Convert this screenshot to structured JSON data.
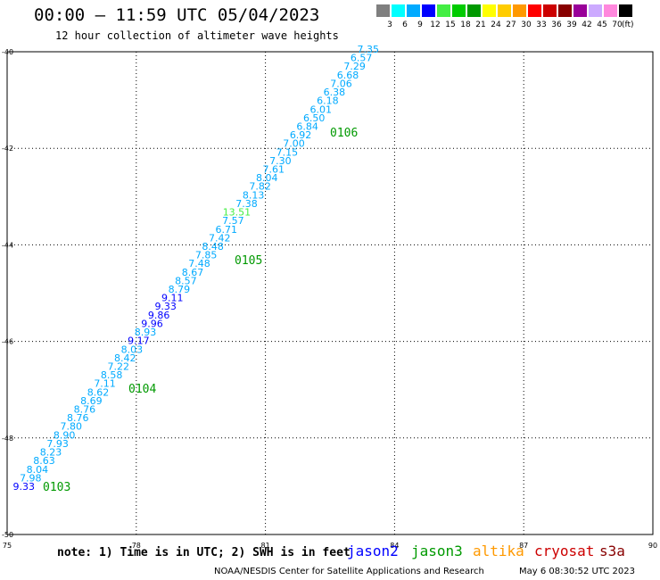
{
  "header": {
    "title": "00:00 – 11:59 UTC 05/04/2023",
    "subtitle": "12 hour collection of altimeter wave heights"
  },
  "colorbar": {
    "swatches": [
      {
        "label": "3",
        "color": "#7f7f7f"
      },
      {
        "label": "6",
        "color": "#00ffff"
      },
      {
        "label": "9",
        "color": "#00aaff"
      },
      {
        "label": "12",
        "color": "#0000ff"
      },
      {
        "label": "15",
        "color": "#44ee44"
      },
      {
        "label": "18",
        "color": "#00cc00"
      },
      {
        "label": "21",
        "color": "#009900"
      },
      {
        "label": "24",
        "color": "#ffff00"
      },
      {
        "label": "27",
        "color": "#ffcc00"
      },
      {
        "label": "30",
        "color": "#ff9900"
      },
      {
        "label": "33",
        "color": "#ff0000"
      },
      {
        "label": "36",
        "color": "#cc0000"
      },
      {
        "label": "39",
        "color": "#880000"
      },
      {
        "label": "42",
        "color": "#990099"
      },
      {
        "label": "45",
        "color": "#ccaaff"
      },
      {
        "label": "70",
        "color": "#ff88dd"
      },
      {
        "label": "",
        "color": "#000000"
      }
    ],
    "unit": "(ft)"
  },
  "chart_data": {
    "type": "scatter",
    "xlim": [
      75,
      90
    ],
    "ylim": [
      -50,
      -40
    ],
    "x_ticks": [
      "75",
      "78",
      "81",
      "84",
      "87",
      "90"
    ],
    "y_ticks": [
      "-40",
      "-42",
      "-44",
      "-46",
      "-48",
      "-50"
    ],
    "grid": true,
    "track_values": [
      {
        "v": "7.35",
        "c": "#00aaff"
      },
      {
        "v": "6.57",
        "c": "#00aaff"
      },
      {
        "v": "7.29",
        "c": "#00aaff"
      },
      {
        "v": "6.68",
        "c": "#00aaff"
      },
      {
        "v": "7.06",
        "c": "#00aaff"
      },
      {
        "v": "6.38",
        "c": "#00aaff"
      },
      {
        "v": "6.18",
        "c": "#00aaff"
      },
      {
        "v": "6.01",
        "c": "#00aaff"
      },
      {
        "v": "6.50",
        "c": "#00aaff"
      },
      {
        "v": "6.84",
        "c": "#00aaff"
      },
      {
        "v": "6.92",
        "c": "#00aaff"
      },
      {
        "v": "7.00",
        "c": "#00aaff"
      },
      {
        "v": "7.15",
        "c": "#00aaff"
      },
      {
        "v": "7.30",
        "c": "#00aaff"
      },
      {
        "v": "7.61",
        "c": "#00aaff"
      },
      {
        "v": "8.04",
        "c": "#00aaff"
      },
      {
        "v": "7.82",
        "c": "#00aaff"
      },
      {
        "v": "8.13",
        "c": "#00aaff"
      },
      {
        "v": "7.38",
        "c": "#00aaff"
      },
      {
        "v": "13.51",
        "c": "#44ee44"
      },
      {
        "v": "7.57",
        "c": "#00aaff"
      },
      {
        "v": "6.71",
        "c": "#00aaff"
      },
      {
        "v": "7.42",
        "c": "#00aaff"
      },
      {
        "v": "8.48",
        "c": "#00aaff"
      },
      {
        "v": "7.85",
        "c": "#00aaff"
      },
      {
        "v": "7.48",
        "c": "#00aaff"
      },
      {
        "v": "8.67",
        "c": "#00aaff"
      },
      {
        "v": "8.57",
        "c": "#00aaff"
      },
      {
        "v": "8.79",
        "c": "#00aaff"
      },
      {
        "v": "9.11",
        "c": "#0000ff"
      },
      {
        "v": "9.33",
        "c": "#0000ff"
      },
      {
        "v": "9.86",
        "c": "#0000ff"
      },
      {
        "v": "9.96",
        "c": "#0000ff"
      },
      {
        "v": "8.93",
        "c": "#00aaff"
      },
      {
        "v": "9.17",
        "c": "#0000ff"
      },
      {
        "v": "8.03",
        "c": "#00aaff"
      },
      {
        "v": "8.42",
        "c": "#00aaff"
      },
      {
        "v": "7.22",
        "c": "#00aaff"
      },
      {
        "v": "8.58",
        "c": "#00aaff"
      },
      {
        "v": "7.11",
        "c": "#00aaff"
      },
      {
        "v": "8.62",
        "c": "#00aaff"
      },
      {
        "v": "8.69",
        "c": "#00aaff"
      },
      {
        "v": "8.76",
        "c": "#00aaff"
      },
      {
        "v": "8.76",
        "c": "#00aaff"
      },
      {
        "v": "7.80",
        "c": "#00aaff"
      },
      {
        "v": "8.90",
        "c": "#00aaff"
      },
      {
        "v": "7.93",
        "c": "#00aaff"
      },
      {
        "v": "8.23",
        "c": "#00aaff"
      },
      {
        "v": "8.63",
        "c": "#00aaff"
      },
      {
        "v": "8.04",
        "c": "#00aaff"
      },
      {
        "v": "7.98",
        "c": "#00aaff"
      },
      {
        "v": "9.33",
        "c": "#0000ff"
      }
    ],
    "time_labels": [
      "0106",
      "0105",
      "0104",
      "0103"
    ],
    "time_color": "#009900"
  },
  "footer": {
    "note": "note: 1) Time is in UTC; 2) SWH is in feet",
    "satellites": [
      {
        "name": "jason2",
        "color": "#0000ff"
      },
      {
        "name": "jason3",
        "color": "#009900"
      },
      {
        "name": "altika",
        "color": "#ff9900"
      },
      {
        "name": "cryosat",
        "color": "#cc0000"
      },
      {
        "name": "s3a",
        "color": "#880000"
      }
    ],
    "credit": "NOAA/NESDIS Center for Satellite Applications and Research",
    "timestamp": "May  6 08:30:52 UTC 2023"
  }
}
